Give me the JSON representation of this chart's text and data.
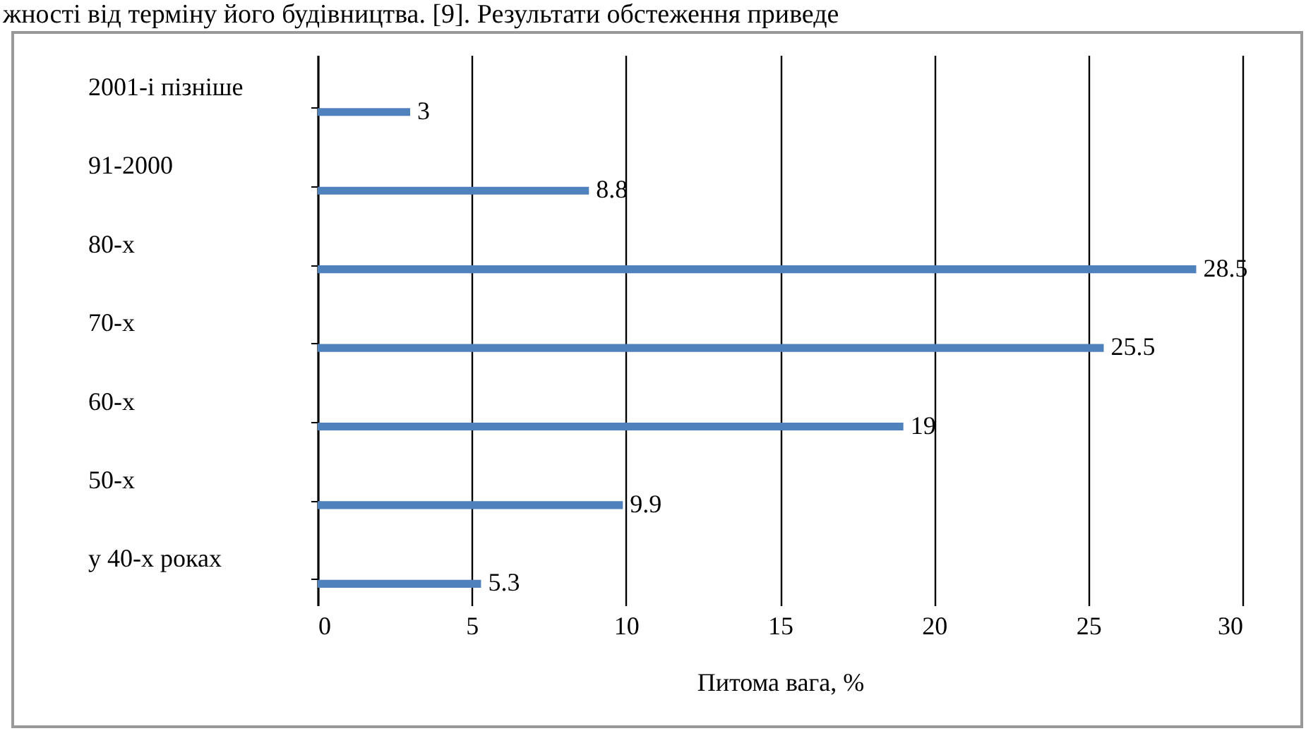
{
  "chart_data": {
    "type": "bar",
    "orientation": "horizontal",
    "xlabel": "Питома вага, %",
    "categories": [
      "2001-і пізніше",
      "91-2000",
      "80-х",
      "70-х",
      "60-х",
      "50-х",
      "у 40-х роках"
    ],
    "values": [
      3,
      8.8,
      28.5,
      25.5,
      19,
      9.9,
      5.3
    ],
    "color": "#4f81bd",
    "xlim": [
      0,
      30
    ],
    "xticks": [
      0,
      5,
      10,
      15,
      20,
      25,
      30
    ],
    "grid": "x",
    "data_labels": true,
    "annotations": [
      "жності від терміну його будівництва. [9]. Результати обстеження приведе"
    ]
  }
}
